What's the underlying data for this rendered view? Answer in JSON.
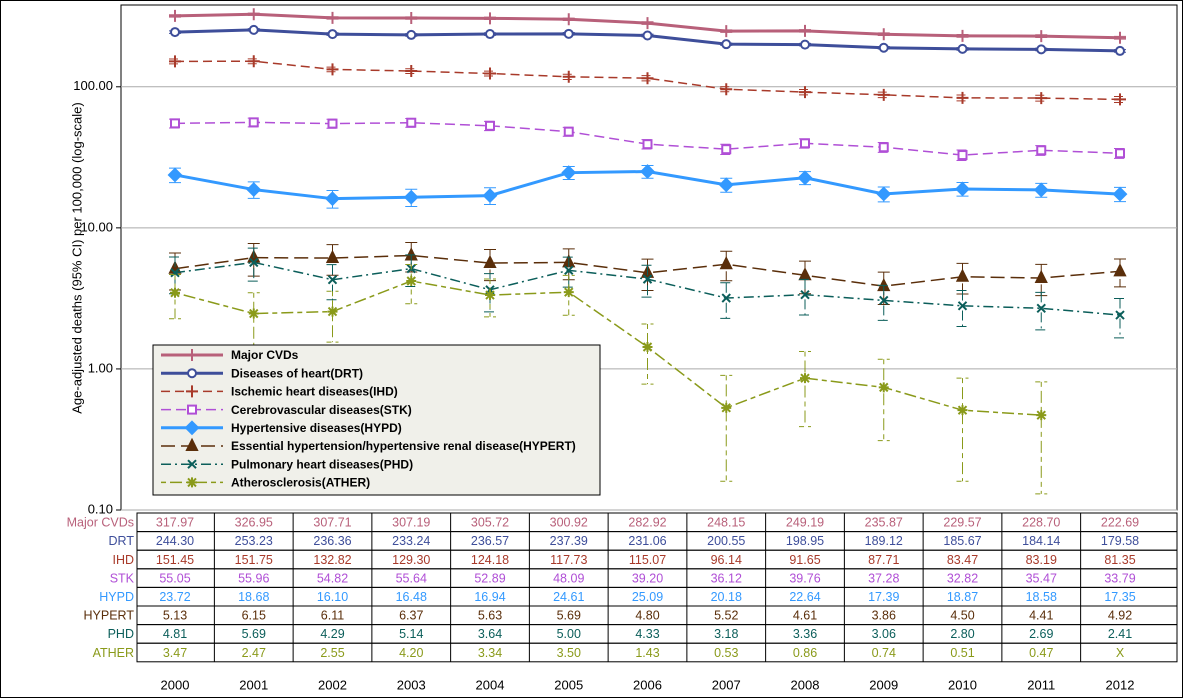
{
  "chart_data": {
    "type": "line",
    "y_label": "Age-adjusted deaths (95% CI) per 100,000 (log-scale)",
    "categories": [
      "2000",
      "2001",
      "2002",
      "2003",
      "2004",
      "2005",
      "2006",
      "2007",
      "2008",
      "2009",
      "2010",
      "2011",
      "2012"
    ],
    "log_scale": true,
    "grid": true,
    "legend": "lower-left",
    "ylim": [
      0.1,
      380
    ],
    "yticks": [
      {
        "value": 0.1,
        "label": "0.10"
      },
      {
        "value": 1,
        "label": "1.00"
      },
      {
        "value": 10,
        "label": "10.00"
      },
      {
        "value": 100,
        "label": "100.00"
      }
    ],
    "series": [
      {
        "name": "Major CVDs",
        "label": "Major CVDs",
        "color": "#b8607a",
        "marker": "plus",
        "dash": "",
        "width": 3,
        "values": [
          317.97,
          326.95,
          307.71,
          307.19,
          305.72,
          300.92,
          282.92,
          248.15,
          249.19,
          235.87,
          229.57,
          228.7,
          222.69
        ],
        "value_labels": [
          "317.97",
          "326.95",
          "307.71",
          "307.19",
          "305.72",
          "300.92",
          "282.92",
          "248.15",
          "249.19",
          "235.87",
          "229.57",
          "228.70",
          "222.69"
        ],
        "errors": [
          6,
          6,
          6,
          6,
          6,
          6,
          6,
          5,
          5,
          5,
          5,
          5,
          5
        ]
      },
      {
        "name": "Diseases of heart(DRT)",
        "label": "DRT",
        "color": "#3e4e9a",
        "marker": "circle",
        "dash": "",
        "width": 3,
        "values": [
          244.3,
          253.23,
          236.36,
          233.24,
          236.57,
          237.39,
          231.06,
          200.55,
          198.95,
          189.12,
          185.67,
          184.14,
          179.58
        ],
        "value_labels": [
          "244.30",
          "253.23",
          "236.36",
          "233.24",
          "236.57",
          "237.39",
          "231.06",
          "200.55",
          "198.95",
          "189.12",
          "185.67",
          "184.14",
          "179.58"
        ],
        "errors": [
          5,
          5,
          5,
          5,
          5,
          5,
          5,
          4,
          4,
          4,
          4,
          4,
          4
        ]
      },
      {
        "name": "Ischemic heart diseases(IHD)",
        "label": "IHD",
        "color": "#a83a2a",
        "marker": "plus",
        "dash": "9,5",
        "width": 1.5,
        "values": [
          151.45,
          151.75,
          132.82,
          129.3,
          124.18,
          117.73,
          115.07,
          96.14,
          91.65,
          87.71,
          83.47,
          83.19,
          81.35
        ],
        "value_labels": [
          "151.45",
          "151.75",
          "132.82",
          "129.30",
          "124.18",
          "117.73",
          "115.07",
          "96.14",
          "91.65",
          "87.71",
          "83.47",
          "83.19",
          "81.35"
        ],
        "errors": [
          6,
          6,
          5,
          5,
          5,
          5,
          5,
          4,
          4,
          4,
          4,
          4,
          4
        ]
      },
      {
        "name": "Cerebrovascular diseases(STK)",
        "label": "STK",
        "color": "#b04fd6",
        "marker": "square",
        "dash": "10,5",
        "width": 1.5,
        "values": [
          55.05,
          55.96,
          54.82,
          55.64,
          52.89,
          48.09,
          39.2,
          36.12,
          39.76,
          37.28,
          32.82,
          35.47,
          33.79
        ],
        "value_labels": [
          "55.05",
          "55.96",
          "54.82",
          "55.64",
          "52.89",
          "48.09",
          "39.20",
          "36.12",
          "39.76",
          "37.28",
          "32.82",
          "35.47",
          "33.79"
        ],
        "errors": [
          4,
          4,
          4,
          4,
          4,
          3.5,
          3,
          3,
          3,
          3,
          2.8,
          2.8,
          2.7
        ]
      },
      {
        "name": "Hypertensive diseases(HYPD)",
        "label": "HYPD",
        "color": "#3399ff",
        "marker": "diamond",
        "dash": "",
        "width": 3,
        "values": [
          23.72,
          18.68,
          16.1,
          16.48,
          16.94,
          24.61,
          25.09,
          20.18,
          22.64,
          17.39,
          18.87,
          18.58,
          17.35
        ],
        "value_labels": [
          "23.72",
          "18.68",
          "16.10",
          "16.48",
          "16.94",
          "24.61",
          "25.09",
          "20.18",
          "22.64",
          "17.39",
          "18.87",
          "18.58",
          "17.35"
        ],
        "errors": [
          2.8,
          2.5,
          2.3,
          2.3,
          2.3,
          2.6,
          2.6,
          2.3,
          2.4,
          2.1,
          2.1,
          2.1,
          2
        ]
      },
      {
        "name": "Essential hypertension/hypertensive renal disease(HYPERT)",
        "label": "HYPERT",
        "color": "#5a2e0a",
        "marker": "triangle",
        "dash": "14,6",
        "width": 1.5,
        "values": [
          5.13,
          6.15,
          6.11,
          6.37,
          5.63,
          5.69,
          4.8,
          5.52,
          4.61,
          3.86,
          4.5,
          4.41,
          4.92
        ],
        "value_labels": [
          "5.13",
          "6.15",
          "6.11",
          "6.37",
          "5.63",
          "5.69",
          "4.80",
          "5.52",
          "4.61",
          "3.86",
          "4.50",
          "4.41",
          "4.92"
        ],
        "errors": [
          1.5,
          1.6,
          1.5,
          1.5,
          1.4,
          1.4,
          1.2,
          1.3,
          1.2,
          1,
          1.1,
          1.1,
          1.1
        ]
      },
      {
        "name": "Pulmonary heart diseases(PHD)",
        "label": "PHD",
        "color": "#0b5e5a",
        "marker": "x",
        "dash": "10,4,2,4",
        "width": 1.5,
        "values": [
          4.81,
          5.69,
          4.29,
          5.14,
          3.64,
          5,
          4.33,
          3.18,
          3.36,
          3.06,
          2.8,
          2.69,
          2.41
        ],
        "value_labels": [
          "4.81",
          "5.69",
          "4.29",
          "5.14",
          "3.64",
          "5.00",
          "4.33",
          "3.18",
          "3.36",
          "3.06",
          "2.80",
          "2.69",
          "2.41"
        ],
        "errors": [
          1.4,
          1.5,
          1.2,
          1.3,
          1.1,
          1.2,
          1.1,
          0.9,
          0.95,
          0.85,
          0.8,
          0.8,
          0.75
        ]
      },
      {
        "name": "Atherosclerosis(ATHER)",
        "label": "ATHER",
        "color": "#8a9a1a",
        "marker": "star",
        "dash": "5,4,12,4",
        "width": 1.5,
        "values": [
          3.47,
          2.47,
          2.55,
          4.2,
          3.34,
          3.5,
          1.43,
          0.53,
          0.86,
          0.74,
          0.51,
          0.47,
          null
        ],
        "value_labels": [
          "3.47",
          "2.47",
          "2.55",
          "4.20",
          "3.34",
          "3.50",
          "1.43",
          "0.53",
          "0.86",
          "0.74",
          "0.51",
          "0.47",
          "X"
        ],
        "errors": [
          1.2,
          1,
          1,
          1.3,
          1,
          1.1,
          0.65,
          0.37,
          0.47,
          0.43,
          0.35,
          0.34,
          null
        ]
      }
    ]
  }
}
